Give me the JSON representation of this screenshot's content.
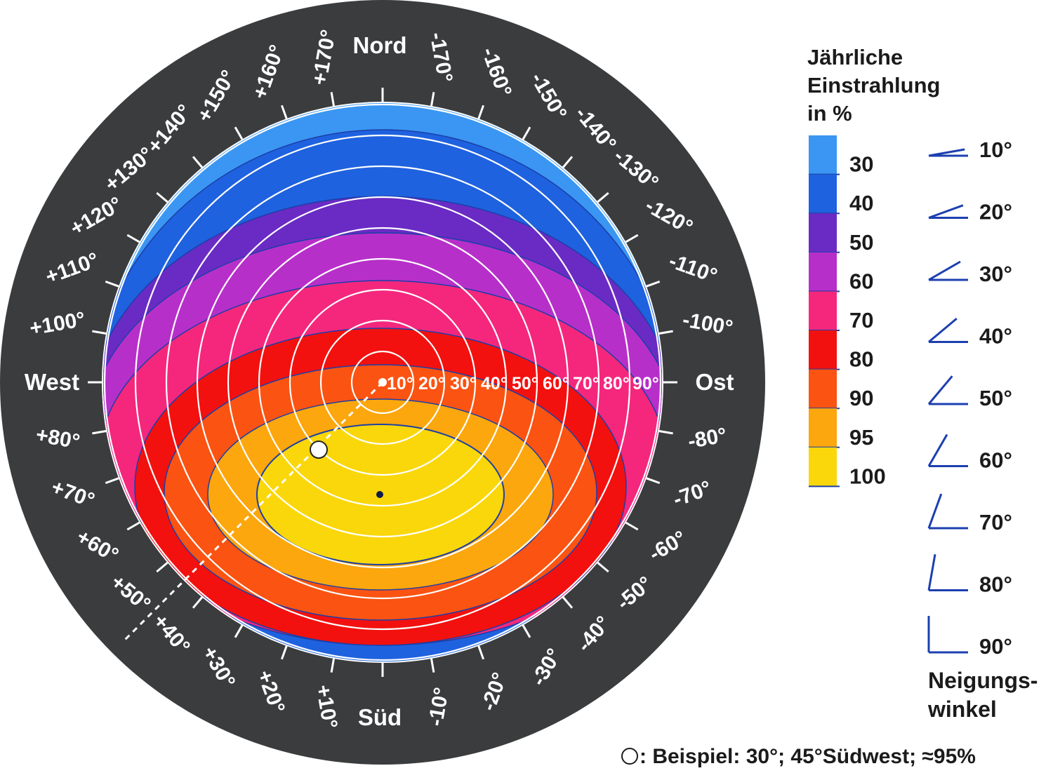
{
  "colors": {
    "ring": "#3a3c3d",
    "band_30": "#3a96f2",
    "band_40": "#1f62df",
    "band_50": "#6a2bc4",
    "band_60": "#b72fc9",
    "band_70": "#f4277d",
    "band_80": "#f2110f",
    "band_90": "#fb5312",
    "band_95": "#fca70d",
    "band_100": "#fad70a",
    "tilt_icon": "#1c3fb0"
  },
  "directions": {
    "north": "Nord",
    "south": "Süd",
    "west": "West",
    "east": "Ost"
  },
  "azimuth_labels_west": [
    "+10°",
    "+20°",
    "+30°",
    "+40°",
    "+50°",
    "+60°",
    "+70°",
    "+80°",
    "+100°",
    "+110°",
    "+120°",
    "+130°",
    "+140°",
    "+150°",
    "+160°",
    "+170°"
  ],
  "azimuth_labels_east": [
    "-10°",
    "-20°",
    "-30°",
    "-40°",
    "-50°",
    "-60°",
    "-70°",
    "-80°",
    "-100°",
    "-110°",
    "-120°",
    "-130°",
    "-140°",
    "-150°",
    "-160°",
    "-170°"
  ],
  "tilt_circle_labels": [
    "10°",
    "20°",
    "30°",
    "40°",
    "50°",
    "60°",
    "70°",
    "80°",
    "90°"
  ],
  "legend": {
    "title_lines": [
      "Jährliche",
      "Einstrahlung",
      "in %"
    ],
    "bands": [
      {
        "label": "30",
        "color_key": "band_30"
      },
      {
        "label": "40",
        "color_key": "band_40"
      },
      {
        "label": "50",
        "color_key": "band_50"
      },
      {
        "label": "60",
        "color_key": "band_60"
      },
      {
        "label": "70",
        "color_key": "band_70"
      },
      {
        "label": "80",
        "color_key": "band_80"
      },
      {
        "label": "90",
        "color_key": "band_90"
      },
      {
        "label": "95",
        "color_key": "band_95"
      },
      {
        "label": "100",
        "color_key": "band_100"
      }
    ]
  },
  "tilt_icons": {
    "angles": [
      10,
      20,
      30,
      40,
      50,
      60,
      70,
      80,
      90
    ],
    "labels": [
      "10°",
      "20°",
      "30°",
      "40°",
      "50°",
      "60°",
      "70°",
      "80°",
      "90°"
    ],
    "caption_lines": [
      "Neigungs-",
      "winkel"
    ]
  },
  "example": {
    "text": ": Beispiel: 30°; 45°Südwest; ≈95%",
    "tilt_deg": 30,
    "azimuth_deg": 45,
    "irradiation_pct": 95
  }
}
